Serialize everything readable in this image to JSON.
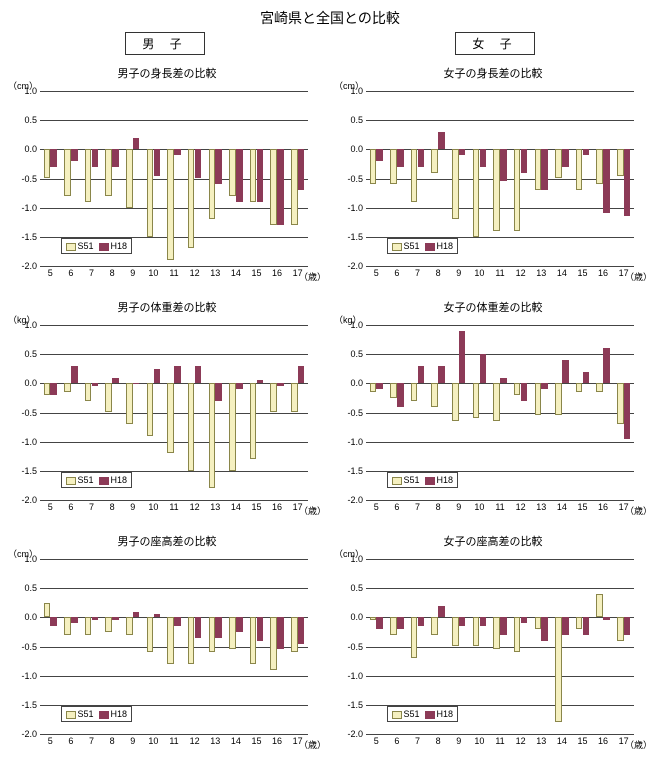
{
  "page_title": "宮崎県と全国との比較",
  "gender_labels": {
    "male": "男 子",
    "female": "女 子"
  },
  "y_axis": {
    "min": -2.0,
    "max": 1.0,
    "step": 0.5,
    "ticks": [
      "1.0",
      "0.5",
      "0.0",
      "-0.5",
      "-1.0",
      "-1.5",
      "-2.0"
    ]
  },
  "ages": [
    5,
    6,
    7,
    8,
    9,
    10,
    11,
    12,
    13,
    14,
    15,
    16,
    17
  ],
  "x_unit": "（歳）",
  "legend": {
    "s51": "S51",
    "h18": "H18"
  },
  "series_colors": {
    "s51": "#f5f0c0",
    "s51_border": "#8a864a",
    "h18": "#8c3a57"
  },
  "gridline_color": "#444444",
  "background_color": "#ffffff",
  "legend_box": {
    "left_pct": 8,
    "top_pct": 84
  },
  "charts": [
    {
      "id": "male-height",
      "col": 0,
      "row": 0,
      "title": "男子の身長差の比較",
      "unit": "（cm）",
      "s51": [
        -0.5,
        -0.8,
        -0.9,
        -0.8,
        -1.0,
        -1.5,
        -1.9,
        -1.7,
        -1.2,
        -0.8,
        -0.9,
        -1.3,
        -1.3
      ],
      "h18": [
        -0.3,
        -0.2,
        -0.3,
        -0.3,
        0.2,
        -0.45,
        -0.1,
        -0.5,
        -0.6,
        -0.9,
        -0.9,
        -1.3,
        -0.7
      ]
    },
    {
      "id": "female-height",
      "col": 1,
      "row": 0,
      "title": "女子の身長差の比較",
      "unit": "（cm）",
      "s51": [
        -0.6,
        -0.6,
        -0.9,
        -0.4,
        -1.2,
        -1.5,
        -1.4,
        -1.4,
        -0.7,
        -0.5,
        -0.7,
        -0.6,
        -0.45
      ],
      "h18": [
        -0.2,
        -0.3,
        -0.3,
        0.3,
        -0.1,
        -0.3,
        -0.55,
        -0.4,
        -0.7,
        -0.3,
        -0.1,
        -1.1,
        -1.15
      ]
    },
    {
      "id": "male-weight",
      "col": 0,
      "row": 1,
      "title": "男子の体重差の比較",
      "unit": "（kg）",
      "s51": [
        -0.2,
        -0.15,
        -0.3,
        -0.5,
        -0.7,
        -0.9,
        -1.2,
        -1.5,
        -1.8,
        -1.5,
        -1.3,
        -0.5,
        -0.5
      ],
      "h18": [
        -0.2,
        0.3,
        -0.05,
        0.1,
        0.0,
        0.25,
        0.3,
        0.3,
        -0.3,
        -0.1,
        0.05,
        -0.05,
        0.3
      ]
    },
    {
      "id": "female-weight",
      "col": 1,
      "row": 1,
      "title": "女子の体重差の比較",
      "unit": "（kg）",
      "s51": [
        -0.15,
        -0.25,
        -0.3,
        -0.4,
        -0.65,
        -0.6,
        -0.65,
        -0.2,
        -0.55,
        -0.55,
        -0.15,
        -0.15,
        -0.7
      ],
      "h18": [
        -0.1,
        -0.4,
        0.3,
        0.3,
        0.9,
        0.5,
        0.1,
        -0.3,
        -0.1,
        0.4,
        0.2,
        0.6,
        -0.95
      ]
    },
    {
      "id": "male-sitheight",
      "col": 0,
      "row": 2,
      "title": "男子の座高差の比較",
      "unit": "（cm）",
      "s51": [
        0.25,
        -0.3,
        -0.3,
        -0.25,
        -0.3,
        -0.6,
        -0.8,
        -0.8,
        -0.6,
        -0.55,
        -0.8,
        -0.9,
        -0.6
      ],
      "h18": [
        -0.15,
        -0.1,
        -0.05,
        -0.05,
        0.1,
        0.05,
        -0.15,
        -0.35,
        -0.35,
        -0.25,
        -0.4,
        -0.55,
        -0.45
      ]
    },
    {
      "id": "female-sitheight",
      "col": 1,
      "row": 2,
      "title": "女子の座高差の比較",
      "unit": "（cm）",
      "s51": [
        -0.05,
        -0.3,
        -0.7,
        -0.3,
        -0.5,
        -0.5,
        -0.55,
        -0.6,
        -0.2,
        -1.8,
        -0.2,
        0.4,
        -0.4
      ],
      "h18": [
        -0.2,
        -0.2,
        -0.15,
        0.2,
        -0.15,
        -0.15,
        -0.3,
        -0.1,
        -0.4,
        -0.3,
        -0.3,
        -0.05,
        -0.3
      ]
    }
  ]
}
